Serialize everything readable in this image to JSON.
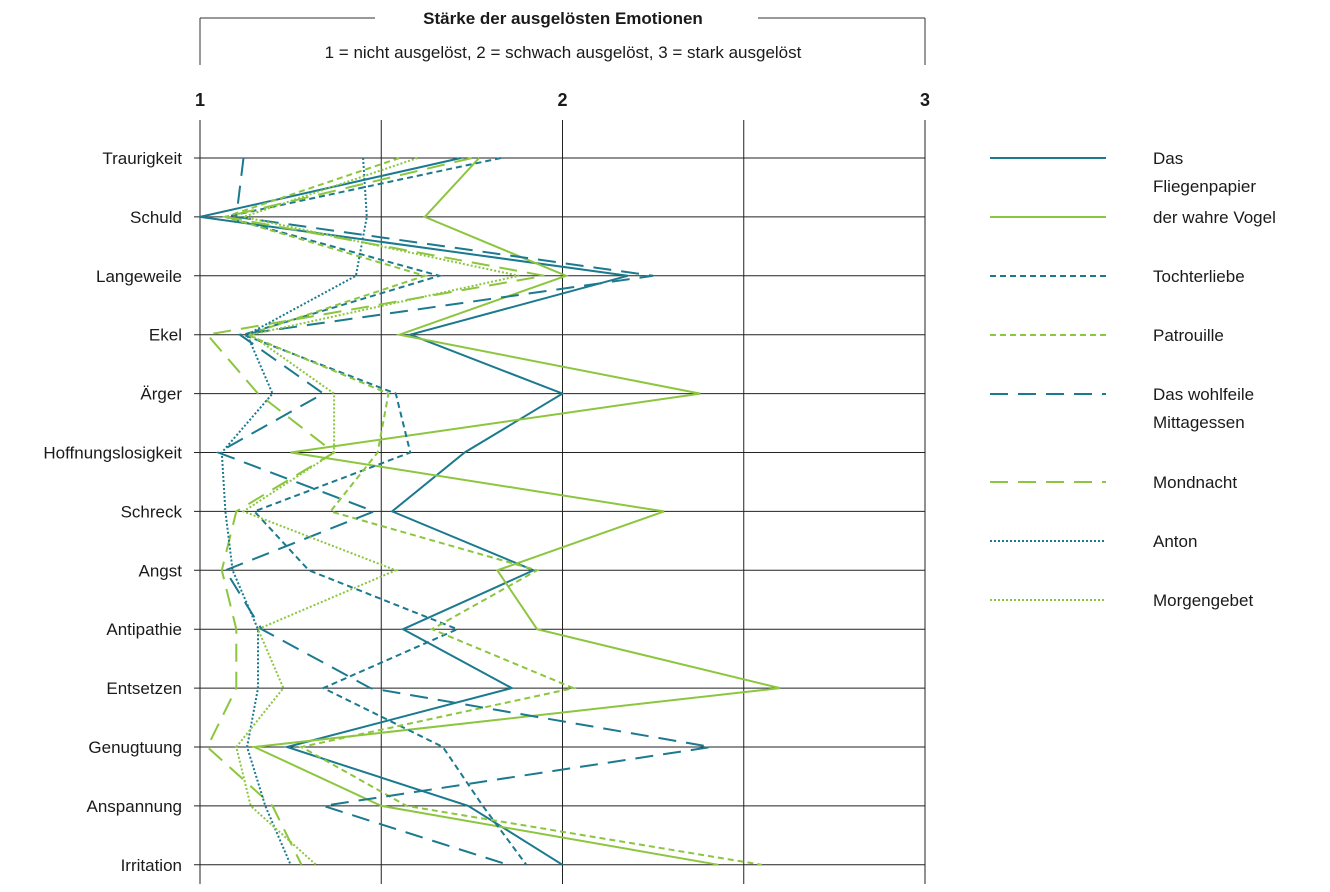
{
  "chart_data": {
    "type": "line",
    "orientation": "horizontal-values",
    "title": "Stärke der ausgelösten Emotionen",
    "subtitle": "1 = nicht ausgelöst, 2 = schwach ausgelöst, 3 = stark ausgelöst",
    "xlim": [
      1,
      3
    ],
    "xticks": [
      "1",
      "2",
      "3"
    ],
    "grid": true,
    "legend_position": "right",
    "categories": [
      "Traurigkeit",
      "Schuld",
      "Langeweile",
      "Ekel",
      "Ärger",
      "Hoffnungslosigkeit",
      "Schreck",
      "Angst",
      "Antipathie",
      "Entsetzen",
      "Genugtuung",
      "Anspannung",
      "Irritation"
    ],
    "series": [
      {
        "name": "Das Fliegenpapier",
        "color": "#1b7a8e",
        "dash": "solid",
        "values": [
          1.72,
          1.0,
          2.18,
          1.58,
          2.0,
          1.73,
          1.53,
          1.92,
          1.56,
          1.86,
          1.24,
          1.74,
          2.0
        ]
      },
      {
        "name": "der wahre Vogel",
        "color": "#8cc63f",
        "dash": "solid",
        "values": [
          1.77,
          1.62,
          2.01,
          1.55,
          2.38,
          1.25,
          2.28,
          1.82,
          1.93,
          2.6,
          1.15,
          1.5,
          2.43
        ]
      },
      {
        "name": "Tochterliebe",
        "color": "#1b7a8e",
        "dash": "short",
        "values": [
          1.83,
          1.07,
          1.66,
          1.12,
          1.54,
          1.58,
          1.15,
          1.3,
          1.71,
          1.34,
          1.67,
          1.78,
          1.9
        ]
      },
      {
        "name": "Patrouille",
        "color": "#8cc63f",
        "dash": "short",
        "values": [
          1.55,
          1.07,
          1.62,
          1.13,
          1.52,
          1.49,
          1.36,
          1.93,
          1.64,
          2.03,
          1.28,
          1.57,
          2.55
        ]
      },
      {
        "name": "Das wohlfeile Mittagessen",
        "color": "#1b7a8e",
        "dash": "long",
        "values": [
          1.12,
          1.1,
          2.25,
          1.11,
          1.34,
          1.05,
          1.48,
          1.07,
          1.17,
          1.47,
          2.41,
          1.34,
          1.85
        ]
      },
      {
        "name": "Mondnacht",
        "color": "#8cc63f",
        "dash": "long",
        "values": [
          1.75,
          1.07,
          1.95,
          1.02,
          1.16,
          1.37,
          1.1,
          1.06,
          1.1,
          1.1,
          1.02,
          1.2,
          1.28
        ]
      },
      {
        "name": "Anton",
        "color": "#1b7a8e",
        "dash": "dot",
        "values": [
          1.45,
          1.46,
          1.43,
          1.13,
          1.2,
          1.06,
          1.07,
          1.09,
          1.16,
          1.16,
          1.13,
          1.18,
          1.25
        ]
      },
      {
        "name": "Morgengebet",
        "color": "#8cc63f",
        "dash": "dot",
        "values": [
          1.6,
          1.12,
          1.88,
          1.14,
          1.37,
          1.37,
          1.12,
          1.54,
          1.16,
          1.23,
          1.1,
          1.14,
          1.32
        ]
      }
    ]
  }
}
